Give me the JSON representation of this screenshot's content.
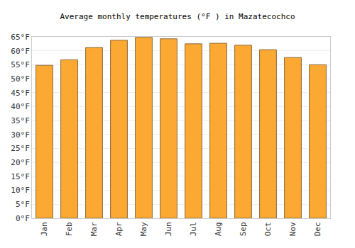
{
  "chart_data": {
    "type": "bar",
    "title": "Average monthly temperatures (°F ) in Mazatecochco",
    "categories": [
      "Jan",
      "Feb",
      "Mar",
      "Apr",
      "May",
      "Jun",
      "Jul",
      "Aug",
      "Sep",
      "Oct",
      "Nov",
      "Dec"
    ],
    "values": [
      54.8,
      56.8,
      61.2,
      63.8,
      64.8,
      64.3,
      62.5,
      62.7,
      62.0,
      60.4,
      57.6,
      55.0
    ],
    "color": "#fca934",
    "ylim": [
      0,
      65
    ],
    "yticks": [
      {
        "value": 0,
        "label": "0°F"
      },
      {
        "value": 5,
        "label": "5°F"
      },
      {
        "value": 10,
        "label": "10°F"
      },
      {
        "value": 15,
        "label": "15°F"
      },
      {
        "value": 20,
        "label": "20°F"
      },
      {
        "value": 25,
        "label": "25°F"
      },
      {
        "value": 30,
        "label": "30°F"
      },
      {
        "value": 35,
        "label": "35°F"
      },
      {
        "value": 40,
        "label": "40°F"
      },
      {
        "value": 45,
        "label": "45°F"
      },
      {
        "value": 50,
        "label": "50°F"
      },
      {
        "value": 55,
        "label": "55°F"
      },
      {
        "value": 60,
        "label": "60°F"
      },
      {
        "value": 65,
        "label": "65°F"
      }
    ],
    "grid": true
  }
}
